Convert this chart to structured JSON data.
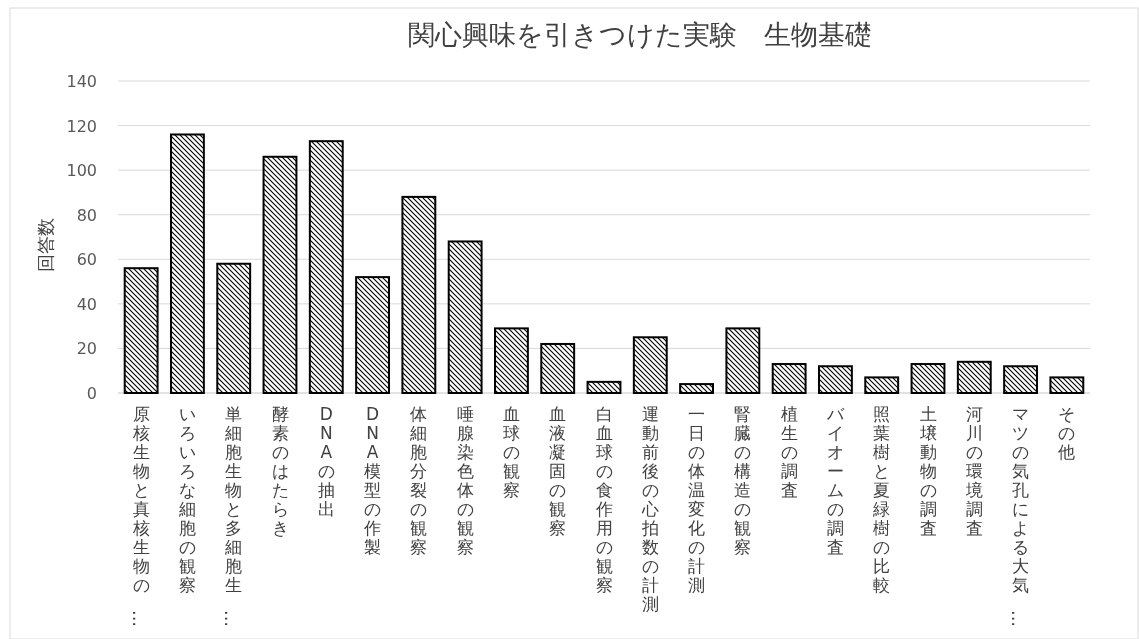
{
  "chart_data": {
    "type": "bar",
    "title": "関心興味を引きつけた実験　生物基礎",
    "ylabel": "回答数",
    "categories": [
      "原核生物と真核生物の…",
      "いろいろな細胞の観察",
      "単細胞生物と多細胞生…",
      "酵素のはたらき",
      "DNAの抽出",
      "DNA模型の作製",
      "体細胞分裂の観察",
      "唾腺染色体の観察",
      "血球の観察",
      "血液凝固の観察",
      "白血球の食作用の観察",
      "運動前後の心拍数の計測",
      "一日の体温変化の計測",
      "腎臓の構造の観察",
      "植生の調査",
      "バイオームの調査",
      "照葉樹と夏緑樹の比較",
      "土壌動物の調査",
      "河川の環境調査",
      "マツの気孔による大気…",
      "その他"
    ],
    "values": [
      56,
      116,
      58,
      106,
      113,
      52,
      88,
      68,
      29,
      22,
      5,
      25,
      4,
      29,
      13,
      12,
      7,
      13,
      14,
      12,
      7
    ],
    "color": "#000000",
    "ylim": [
      0,
      140
    ],
    "yticks": [
      0,
      20,
      40,
      60,
      80,
      100,
      120,
      140
    ],
    "grid": "y"
  }
}
